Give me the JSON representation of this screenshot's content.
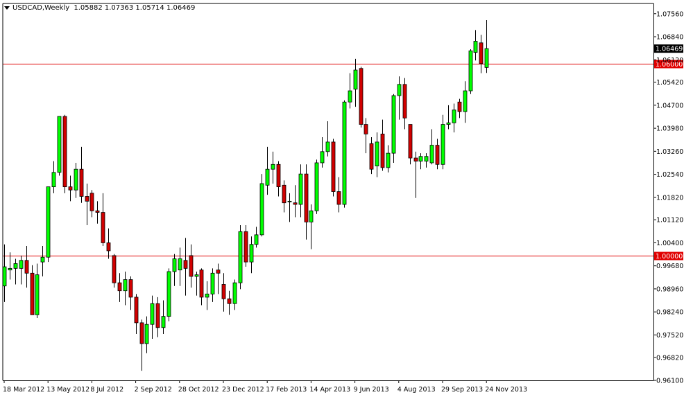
{
  "header": {
    "symbol": "USDCAD,Weekly",
    "ohlc": "1.05882 1.07363 1.05714 1.06469"
  },
  "colors": {
    "background": "#ffffff",
    "axis": "#000000",
    "bull": "#00ff00",
    "bear": "#d10000",
    "wick": "#000000",
    "hline": "#e00000",
    "price_label_bg": "#000000",
    "hline_label_bg": "#e00000"
  },
  "chart_data": {
    "type": "candlestick",
    "title": "USDCAD,Weekly",
    "ylim": [
      0.961,
      1.0788
    ],
    "y_ticks": [
      "1.07560",
      "1.06840",
      "1.06120",
      "1.05420",
      "1.04700",
      "1.03980",
      "1.03260",
      "1.02540",
      "1.01820",
      "1.01120",
      "1.00400",
      "0.99680",
      "0.98960",
      "0.98240",
      "0.97520",
      "0.96820",
      "0.96100"
    ],
    "x_labels": [
      {
        "index": 0,
        "label": "18 Mar 2012"
      },
      {
        "index": 8,
        "label": "13 May 2012"
      },
      {
        "index": 16,
        "label": "8 Jul 2012"
      },
      {
        "index": 24,
        "label": "2 Sep 2012"
      },
      {
        "index": 32,
        "label": "28 Oct 2012"
      },
      {
        "index": 40,
        "label": "23 Dec 2012"
      },
      {
        "index": 48,
        "label": "17 Feb 2013"
      },
      {
        "index": 56,
        "label": "14 Apr 2013"
      },
      {
        "index": 64,
        "label": "9 Jun 2013"
      },
      {
        "index": 72,
        "label": "4 Aug 2013"
      },
      {
        "index": 80,
        "label": "29 Sep 2013"
      },
      {
        "index": 88,
        "label": "24 Nov 2013"
      }
    ],
    "current_price": "1.06469",
    "current_price_value": 1.06469,
    "horizontal_lines": [
      {
        "value": 1.06,
        "label": "1.06000"
      },
      {
        "value": 1.0,
        "label": "1.00000"
      }
    ],
    "candles": [
      {
        "o": 0.9905,
        "h": 1.0035,
        "l": 0.9855,
        "c": 0.9965
      },
      {
        "o": 0.9955,
        "h": 1.001,
        "l": 0.9925,
        "c": 0.996
      },
      {
        "o": 0.996,
        "h": 0.999,
        "l": 0.991,
        "c": 0.9975
      },
      {
        "o": 0.996,
        "h": 1.0,
        "l": 0.991,
        "c": 0.9985
      },
      {
        "o": 0.9985,
        "h": 1.003,
        "l": 0.99,
        "c": 0.9945
      },
      {
        "o": 0.9945,
        "h": 0.997,
        "l": 0.982,
        "c": 0.9815
      },
      {
        "o": 0.9815,
        "h": 0.9975,
        "l": 0.9805,
        "c": 0.994
      },
      {
        "o": 0.998,
        "h": 1.003,
        "l": 0.9935,
        "c": 0.9995
      },
      {
        "o": 0.9995,
        "h": 1.0215,
        "l": 0.998,
        "c": 1.0215
      },
      {
        "o": 1.0215,
        "h": 1.0295,
        "l": 1.0195,
        "c": 1.026
      },
      {
        "o": 1.026,
        "h": 1.0435,
        "l": 1.025,
        "c": 1.0435
      },
      {
        "o": 1.0435,
        "h": 1.044,
        "l": 1.0195,
        "c": 1.0215
      },
      {
        "o": 1.0215,
        "h": 1.025,
        "l": 1.017,
        "c": 1.0205
      },
      {
        "o": 1.0205,
        "h": 1.029,
        "l": 1.018,
        "c": 1.027
      },
      {
        "o": 1.027,
        "h": 1.034,
        "l": 1.0165,
        "c": 1.0185
      },
      {
        "o": 1.0185,
        "h": 1.0225,
        "l": 1.0095,
        "c": 1.017
      },
      {
        "o": 1.0195,
        "h": 1.0205,
        "l": 1.012,
        "c": 1.014
      },
      {
        "o": 1.014,
        "h": 1.017,
        "l": 1.01,
        "c": 1.0135
      },
      {
        "o": 1.0135,
        "h": 1.0195,
        "l": 1.003,
        "c": 1.004
      },
      {
        "o": 1.004,
        "h": 1.0085,
        "l": 0.999,
        "c": 1.0015
      },
      {
        "o": 1.0,
        "h": 1.0005,
        "l": 0.99,
        "c": 0.9915
      },
      {
        "o": 0.9915,
        "h": 0.9945,
        "l": 0.9855,
        "c": 0.989
      },
      {
        "o": 0.989,
        "h": 0.995,
        "l": 0.9845,
        "c": 0.9925
      },
      {
        "o": 0.9925,
        "h": 0.9935,
        "l": 0.983,
        "c": 0.987
      },
      {
        "o": 0.987,
        "h": 0.988,
        "l": 0.9755,
        "c": 0.979
      },
      {
        "o": 0.979,
        "h": 0.98,
        "l": 0.964,
        "c": 0.9725
      },
      {
        "o": 0.9725,
        "h": 0.981,
        "l": 0.9695,
        "c": 0.9785
      },
      {
        "o": 0.9785,
        "h": 0.9875,
        "l": 0.974,
        "c": 0.985
      },
      {
        "o": 0.985,
        "h": 0.987,
        "l": 0.9745,
        "c": 0.9775
      },
      {
        "o": 0.9775,
        "h": 0.986,
        "l": 0.9755,
        "c": 0.981
      },
      {
        "o": 0.981,
        "h": 0.996,
        "l": 0.9795,
        "c": 0.995
      },
      {
        "o": 0.995,
        "h": 1.0005,
        "l": 0.9905,
        "c": 0.999
      },
      {
        "o": 0.9955,
        "h": 1.0025,
        "l": 0.9905,
        "c": 0.999
      },
      {
        "o": 0.9985,
        "h": 1.0055,
        "l": 0.9875,
        "c": 0.996
      },
      {
        "o": 1.0,
        "h": 1.0035,
        "l": 0.99,
        "c": 0.9935
      },
      {
        "o": 0.9935,
        "h": 0.995,
        "l": 0.9875,
        "c": 0.994
      },
      {
        "o": 0.9955,
        "h": 0.996,
        "l": 0.9845,
        "c": 0.987
      },
      {
        "o": 0.987,
        "h": 0.992,
        "l": 0.983,
        "c": 0.988
      },
      {
        "o": 0.988,
        "h": 0.996,
        "l": 0.9855,
        "c": 0.9945
      },
      {
        "o": 0.9955,
        "h": 0.9975,
        "l": 0.988,
        "c": 0.9945
      },
      {
        "o": 0.991,
        "h": 0.9945,
        "l": 0.9825,
        "c": 0.9865
      },
      {
        "o": 0.9865,
        "h": 0.989,
        "l": 0.9815,
        "c": 0.985
      },
      {
        "o": 0.985,
        "h": 0.9925,
        "l": 0.983,
        "c": 0.9915
      },
      {
        "o": 0.9915,
        "h": 1.0095,
        "l": 0.9895,
        "c": 1.0075
      },
      {
        "o": 1.0075,
        "h": 1.0095,
        "l": 0.9965,
        "c": 0.998
      },
      {
        "o": 0.998,
        "h": 1.006,
        "l": 0.9945,
        "c": 1.0035
      },
      {
        "o": 1.0035,
        "h": 1.009,
        "l": 1.0025,
        "c": 1.0065
      },
      {
        "o": 1.0065,
        "h": 1.0255,
        "l": 1.006,
        "c": 1.0225
      },
      {
        "o": 1.022,
        "h": 1.034,
        "l": 1.019,
        "c": 1.027
      },
      {
        "o": 1.027,
        "h": 1.0325,
        "l": 1.0225,
        "c": 1.0285
      },
      {
        "o": 1.0285,
        "h": 1.0295,
        "l": 1.0185,
        "c": 1.0215
      },
      {
        "o": 1.022,
        "h": 1.0235,
        "l": 1.0135,
        "c": 1.0165
      },
      {
        "o": 1.017,
        "h": 1.0195,
        "l": 1.0105,
        "c": 1.017
      },
      {
        "o": 1.0165,
        "h": 1.022,
        "l": 1.012,
        "c": 1.016
      },
      {
        "o": 1.016,
        "h": 1.0285,
        "l": 1.012,
        "c": 1.0255
      },
      {
        "o": 1.0255,
        "h": 1.0285,
        "l": 1.005,
        "c": 1.0105
      },
      {
        "o": 1.0105,
        "h": 1.016,
        "l": 1.002,
        "c": 1.014
      },
      {
        "o": 1.014,
        "h": 1.03,
        "l": 1.013,
        "c": 1.029
      },
      {
        "o": 1.029,
        "h": 1.037,
        "l": 1.0275,
        "c": 1.0325
      },
      {
        "o": 1.0325,
        "h": 1.042,
        "l": 1.031,
        "c": 1.0355
      },
      {
        "o": 1.0355,
        "h": 1.0365,
        "l": 1.0185,
        "c": 1.02
      },
      {
        "o": 1.02,
        "h": 1.0245,
        "l": 1.0135,
        "c": 1.016
      },
      {
        "o": 1.016,
        "h": 1.0485,
        "l": 1.015,
        "c": 1.048
      },
      {
        "o": 1.048,
        "h": 1.057,
        "l": 1.046,
        "c": 1.0515
      },
      {
        "o": 1.052,
        "h": 1.0615,
        "l": 1.0465,
        "c": 1.058
      },
      {
        "o": 1.0585,
        "h": 1.059,
        "l": 1.04,
        "c": 1.041
      },
      {
        "o": 1.041,
        "h": 1.043,
        "l": 1.032,
        "c": 1.038
      },
      {
        "o": 1.035,
        "h": 1.037,
        "l": 1.0255,
        "c": 1.027
      },
      {
        "o": 1.028,
        "h": 1.0385,
        "l": 1.0245,
        "c": 1.0355
      },
      {
        "o": 1.038,
        "h": 1.0425,
        "l": 1.0265,
        "c": 1.0275
      },
      {
        "o": 1.0275,
        "h": 1.0345,
        "l": 1.026,
        "c": 1.032
      },
      {
        "o": 1.032,
        "h": 1.0505,
        "l": 1.029,
        "c": 1.05
      },
      {
        "o": 1.05,
        "h": 1.056,
        "l": 1.0425,
        "c": 1.0535
      },
      {
        "o": 1.0535,
        "h": 1.0555,
        "l": 1.0395,
        "c": 1.043
      },
      {
        "o": 1.041,
        "h": 1.041,
        "l": 1.0285,
        "c": 1.0305
      },
      {
        "o": 1.0305,
        "h": 1.0325,
        "l": 1.018,
        "c": 1.0295
      },
      {
        "o": 1.0295,
        "h": 1.032,
        "l": 1.027,
        "c": 1.031
      },
      {
        "o": 1.0295,
        "h": 1.032,
        "l": 1.0275,
        "c": 1.031
      },
      {
        "o": 1.029,
        "h": 1.0395,
        "l": 1.0285,
        "c": 1.0345
      },
      {
        "o": 1.0345,
        "h": 1.0365,
        "l": 1.027,
        "c": 1.0285
      },
      {
        "o": 1.0285,
        "h": 1.044,
        "l": 1.027,
        "c": 1.041
      },
      {
        "o": 1.041,
        "h": 1.047,
        "l": 1.0395,
        "c": 1.0415
      },
      {
        "o": 1.0415,
        "h": 1.0475,
        "l": 1.0385,
        "c": 1.0455
      },
      {
        "o": 1.048,
        "h": 1.049,
        "l": 1.043,
        "c": 1.045
      },
      {
        "o": 1.045,
        "h": 1.0545,
        "l": 1.0415,
        "c": 1.0515
      },
      {
        "o": 1.0515,
        "h": 1.0645,
        "l": 1.0505,
        "c": 1.064
      },
      {
        "o": 1.0635,
        "h": 1.0705,
        "l": 1.061,
        "c": 1.067
      },
      {
        "o": 1.0665,
        "h": 1.069,
        "l": 1.057,
        "c": 1.06
      },
      {
        "o": 1.0588,
        "h": 1.0736,
        "l": 1.0571,
        "c": 1.0647
      }
    ]
  }
}
